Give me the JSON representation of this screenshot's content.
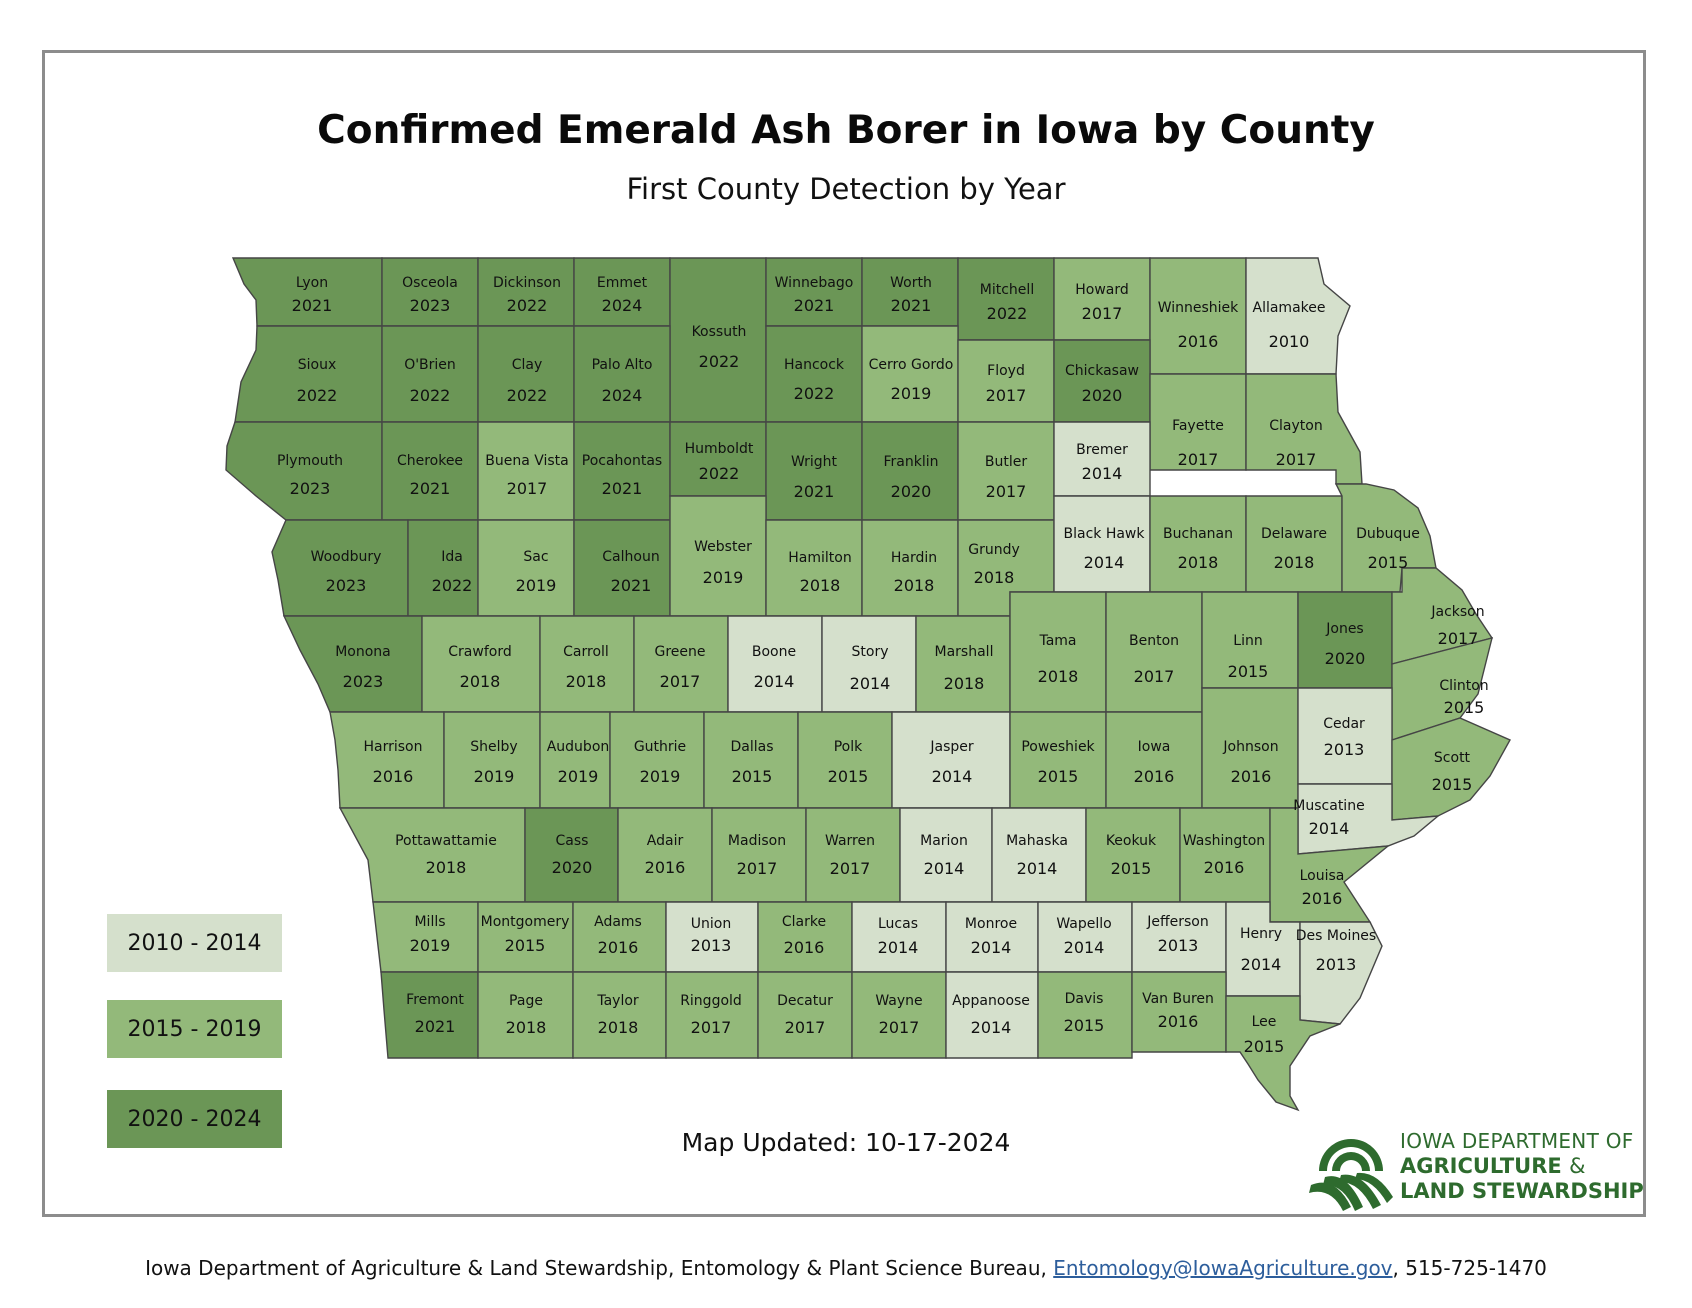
{
  "title": "Confirmed Emerald Ash Borer in Iowa by County",
  "subtitle": "First County Detection by Year",
  "legend": [
    {
      "label": "2010 - 2014",
      "color": "#d5e0cc"
    },
    {
      "label": "2015 - 2019",
      "color": "#93b97a"
    },
    {
      "label": "2020 - 2024",
      "color": "#6b9656"
    }
  ],
  "map_updated": "Map Updated: 10-17-2024",
  "logo": {
    "line1": "IOWA DEPARTMENT OF",
    "line2": "AGRICULTURE",
    "amp": "&",
    "line3": "LAND STEWARDSHIP",
    "icon": "wheat-field-logo-icon"
  },
  "footer": {
    "text_before": "Iowa Department of Agriculture & Land Stewardship, Entomology & Plant Science Bureau, ",
    "email": "Entomology@IowaAgriculture.gov",
    "text_after": ", 515-725-1470"
  },
  "counties": [
    {
      "name": "Lyon",
      "year": 2021
    },
    {
      "name": "Osceola",
      "year": 2023
    },
    {
      "name": "Dickinson",
      "year": 2022
    },
    {
      "name": "Emmet",
      "year": 2024
    },
    {
      "name": "Kossuth",
      "year": 2022
    },
    {
      "name": "Winnebago",
      "year": 2021
    },
    {
      "name": "Worth",
      "year": 2021
    },
    {
      "name": "Mitchell",
      "year": 2022
    },
    {
      "name": "Howard",
      "year": 2017
    },
    {
      "name": "Winneshiek",
      "year": 2016
    },
    {
      "name": "Allamakee",
      "year": 2010
    },
    {
      "name": "Sioux",
      "year": 2022
    },
    {
      "name": "O'Brien",
      "year": 2022
    },
    {
      "name": "Clay",
      "year": 2022
    },
    {
      "name": "Palo Alto",
      "year": 2024
    },
    {
      "name": "Hancock",
      "year": 2022
    },
    {
      "name": "Cerro Gordo",
      "year": 2019
    },
    {
      "name": "Floyd",
      "year": 2017
    },
    {
      "name": "Chickasaw",
      "year": 2020
    },
    {
      "name": "Fayette",
      "year": 2017
    },
    {
      "name": "Clayton",
      "year": 2017
    },
    {
      "name": "Plymouth",
      "year": 2023
    },
    {
      "name": "Cherokee",
      "year": 2021
    },
    {
      "name": "Buena Vista",
      "year": 2017
    },
    {
      "name": "Pocahontas",
      "year": 2021
    },
    {
      "name": "Humboldt",
      "year": 2022
    },
    {
      "name": "Wright",
      "year": 2021
    },
    {
      "name": "Franklin",
      "year": 2020
    },
    {
      "name": "Butler",
      "year": 2017
    },
    {
      "name": "Bremer",
      "year": 2014
    },
    {
      "name": "Woodbury",
      "year": 2023
    },
    {
      "name": "Ida",
      "year": 2022
    },
    {
      "name": "Sac",
      "year": 2019
    },
    {
      "name": "Calhoun",
      "year": 2021
    },
    {
      "name": "Webster",
      "year": 2019
    },
    {
      "name": "Hamilton",
      "year": 2018
    },
    {
      "name": "Hardin",
      "year": 2018
    },
    {
      "name": "Grundy",
      "year": 2018
    },
    {
      "name": "Black Hawk",
      "year": 2014
    },
    {
      "name": "Buchanan",
      "year": 2018
    },
    {
      "name": "Delaware",
      "year": 2018
    },
    {
      "name": "Dubuque",
      "year": 2015
    },
    {
      "name": "Monona",
      "year": 2023
    },
    {
      "name": "Crawford",
      "year": 2018
    },
    {
      "name": "Carroll",
      "year": 2018
    },
    {
      "name": "Greene",
      "year": 2017
    },
    {
      "name": "Boone",
      "year": 2014
    },
    {
      "name": "Story",
      "year": 2014
    },
    {
      "name": "Marshall",
      "year": 2018
    },
    {
      "name": "Tama",
      "year": 2018
    },
    {
      "name": "Benton",
      "year": 2017
    },
    {
      "name": "Linn",
      "year": 2015
    },
    {
      "name": "Jones",
      "year": 2020
    },
    {
      "name": "Jackson",
      "year": 2017
    },
    {
      "name": "Clinton",
      "year": 2015
    },
    {
      "name": "Harrison",
      "year": 2016
    },
    {
      "name": "Shelby",
      "year": 2019
    },
    {
      "name": "Audubon",
      "year": 2019
    },
    {
      "name": "Guthrie",
      "year": 2019
    },
    {
      "name": "Dallas",
      "year": 2015
    },
    {
      "name": "Polk",
      "year": 2015
    },
    {
      "name": "Jasper",
      "year": 2014
    },
    {
      "name": "Poweshiek",
      "year": 2015
    },
    {
      "name": "Iowa",
      "year": 2016
    },
    {
      "name": "Johnson",
      "year": 2016
    },
    {
      "name": "Cedar",
      "year": 2013
    },
    {
      "name": "Scott",
      "year": 2015
    },
    {
      "name": "Muscatine",
      "year": 2014
    },
    {
      "name": "Pottawattamie",
      "year": 2018
    },
    {
      "name": "Cass",
      "year": 2020
    },
    {
      "name": "Adair",
      "year": 2016
    },
    {
      "name": "Madison",
      "year": 2017
    },
    {
      "name": "Warren",
      "year": 2017
    },
    {
      "name": "Marion",
      "year": 2014
    },
    {
      "name": "Mahaska",
      "year": 2014
    },
    {
      "name": "Keokuk",
      "year": 2015
    },
    {
      "name": "Washington",
      "year": 2016
    },
    {
      "name": "Louisa",
      "year": 2016
    },
    {
      "name": "Mills",
      "year": 2019
    },
    {
      "name": "Montgomery",
      "year": 2015
    },
    {
      "name": "Adams",
      "year": 2016
    },
    {
      "name": "Union",
      "year": 2013
    },
    {
      "name": "Clarke",
      "year": 2016
    },
    {
      "name": "Lucas",
      "year": 2014
    },
    {
      "name": "Monroe",
      "year": 2014
    },
    {
      "name": "Wapello",
      "year": 2014
    },
    {
      "name": "Jefferson",
      "year": 2013
    },
    {
      "name": "Henry",
      "year": 2014
    },
    {
      "name": "Des Moines",
      "year": 2013
    },
    {
      "name": "Fremont",
      "year": 2021
    },
    {
      "name": "Page",
      "year": 2018
    },
    {
      "name": "Taylor",
      "year": 2018
    },
    {
      "name": "Ringgold",
      "year": 2017
    },
    {
      "name": "Decatur",
      "year": 2017
    },
    {
      "name": "Wayne",
      "year": 2017
    },
    {
      "name": "Appanoose",
      "year": 2014
    },
    {
      "name": "Davis",
      "year": 2015
    },
    {
      "name": "Van Buren",
      "year": 2016
    },
    {
      "name": "Lee",
      "year": 2015
    }
  ]
}
